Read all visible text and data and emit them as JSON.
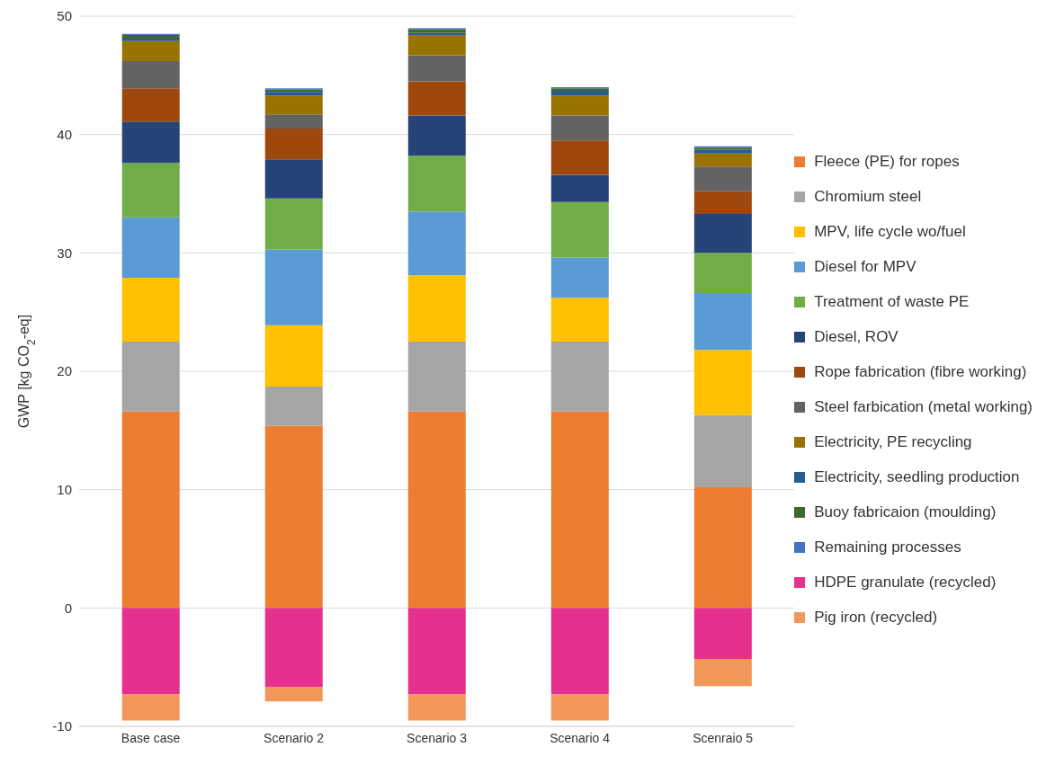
{
  "chart_data": {
    "type": "bar",
    "stacked": true,
    "ylabel": "GWP [kg CO$_{2}$-eq]",
    "categories": [
      "Base case",
      "Scenario 2",
      "Scenario 3",
      "Scenario 4",
      "Scenraio 5"
    ],
    "ylim": [
      -10,
      50
    ],
    "yticks": [
      -10,
      0,
      10,
      20,
      30,
      40,
      50
    ],
    "grid": "y",
    "legend": "right",
    "series": [
      {
        "name": "Fleece (PE) for ropes",
        "color": "#ed7d31",
        "values": [
          16.6,
          15.4,
          16.6,
          16.6,
          10.2
        ]
      },
      {
        "name": "Chromium steel",
        "color": "#a5a5a5",
        "values": [
          5.9,
          3.3,
          5.9,
          5.9,
          6.1
        ]
      },
      {
        "name": "MPV, life cycle wo/fuel",
        "color": "#ffc000",
        "values": [
          5.4,
          5.2,
          5.6,
          3.7,
          5.5
        ]
      },
      {
        "name": "Diesel for MPV",
        "color": "#5b9bd5",
        "values": [
          5.1,
          6.4,
          5.4,
          3.4,
          4.8
        ]
      },
      {
        "name": "Treatment of waste PE",
        "color": "#70ad47",
        "values": [
          4.6,
          4.3,
          4.7,
          4.7,
          3.4
        ]
      },
      {
        "name": "Diesel, ROV",
        "color": "#264478",
        "values": [
          3.5,
          3.3,
          3.4,
          2.3,
          3.3
        ]
      },
      {
        "name": "Rope fabrication (fibre working)",
        "color": "#9e480e",
        "values": [
          2.8,
          2.6,
          2.9,
          2.9,
          1.9
        ]
      },
      {
        "name": "Steel farbication (metal working)",
        "color": "#636363",
        "values": [
          2.3,
          1.2,
          2.2,
          2.1,
          2.1
        ]
      },
      {
        "name": "Electricity, PE recycling",
        "color": "#997300",
        "values": [
          1.7,
          1.6,
          1.7,
          1.7,
          1.1
        ]
      },
      {
        "name": "Electricity, seedling production",
        "color": "#255e91",
        "values": [
          0.2,
          0.3,
          0.2,
          0.4,
          0.3
        ]
      },
      {
        "name": "Buoy fabricaion (moulding)",
        "color": "#43682b",
        "values": [
          0.3,
          0.2,
          0.3,
          0.2,
          0.2
        ]
      },
      {
        "name": "Remaining processes",
        "color": "#4472c4",
        "values": [
          0.1,
          0.1,
          0.1,
          0.1,
          0.1
        ]
      },
      {
        "name": "HDPE granulate (recycled)",
        "color": "#e6308e",
        "values": [
          -7.3,
          -6.7,
          -7.3,
          -7.3,
          -4.3
        ]
      },
      {
        "name": "Pig iron (recycled)",
        "color": "#f1975a",
        "values": [
          -2.2,
          -1.2,
          -2.2,
          -2.2,
          -2.3
        ]
      }
    ]
  }
}
